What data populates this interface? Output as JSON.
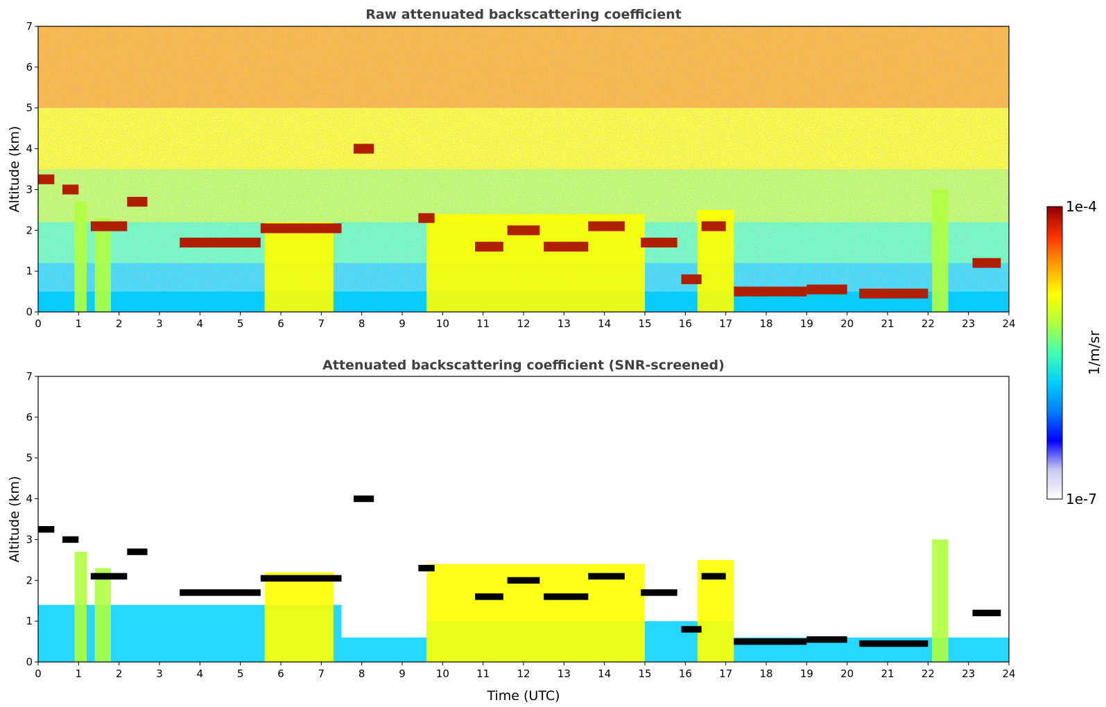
{
  "chart_data": [
    {
      "type": "heatmap",
      "title": "Raw attenuated backscattering coefficient",
      "xlabel": "",
      "ylabel": "Altitude (km)",
      "xlim": [
        0,
        24
      ],
      "ylim": [
        0,
        7
      ],
      "xticks": [
        "0",
        "1",
        "2",
        "3",
        "4",
        "5",
        "6",
        "7",
        "8",
        "9",
        "10",
        "11",
        "12",
        "13",
        "14",
        "15",
        "16",
        "17",
        "18",
        "19",
        "20",
        "21",
        "22",
        "23",
        "24"
      ],
      "yticks": [
        "0",
        "1",
        "2",
        "3",
        "4",
        "5",
        "6",
        "7"
      ],
      "screened": false,
      "layers": [
        {
          "name": "boundary layer",
          "x_start": 0,
          "x_end": 24,
          "top_km": 0.5,
          "level": 0.3
        },
        {
          "name": "aerosol column 1",
          "x_start": 0.9,
          "x_end": 1.2,
          "top_km": 2.7,
          "level": 0.55
        },
        {
          "name": "aerosol column 2",
          "x_start": 1.4,
          "x_end": 1.8,
          "top_km": 2.3,
          "level": 0.55
        },
        {
          "name": "aerosol column 3",
          "x_start": 5.6,
          "x_end": 7.3,
          "top_km": 2.2,
          "level": 0.6
        },
        {
          "name": "aerosol column 4",
          "x_start": 9.6,
          "x_end": 15.0,
          "top_km": 2.4,
          "level": 0.65
        },
        {
          "name": "aerosol column 5",
          "x_start": 16.3,
          "x_end": 17.2,
          "top_km": 2.5,
          "level": 0.6
        },
        {
          "name": "aerosol column 6",
          "x_start": 22.1,
          "x_end": 22.5,
          "top_km": 3.0,
          "level": 0.5
        }
      ],
      "cloud_tops": [
        {
          "x_start": 0.0,
          "x_end": 0.4,
          "alt_km": 3.25
        },
        {
          "x_start": 0.6,
          "x_end": 1.0,
          "alt_km": 3.0
        },
        {
          "x_start": 1.3,
          "x_end": 2.2,
          "alt_km": 2.1
        },
        {
          "x_start": 2.2,
          "x_end": 2.7,
          "alt_km": 2.7
        },
        {
          "x_start": 3.5,
          "x_end": 5.5,
          "alt_km": 1.7
        },
        {
          "x_start": 5.5,
          "x_end": 7.5,
          "alt_km": 2.05
        },
        {
          "x_start": 7.8,
          "x_end": 8.3,
          "alt_km": 4.0
        },
        {
          "x_start": 9.4,
          "x_end": 9.8,
          "alt_km": 2.3
        },
        {
          "x_start": 10.8,
          "x_end": 11.5,
          "alt_km": 1.6
        },
        {
          "x_start": 11.6,
          "x_end": 12.4,
          "alt_km": 2.0
        },
        {
          "x_start": 12.5,
          "x_end": 13.6,
          "alt_km": 1.6
        },
        {
          "x_start": 13.6,
          "x_end": 14.5,
          "alt_km": 2.1
        },
        {
          "x_start": 14.9,
          "x_end": 15.8,
          "alt_km": 1.7
        },
        {
          "x_start": 15.9,
          "x_end": 16.4,
          "alt_km": 0.8
        },
        {
          "x_start": 16.4,
          "x_end": 17.0,
          "alt_km": 2.1
        },
        {
          "x_start": 17.2,
          "x_end": 19.0,
          "alt_km": 0.5
        },
        {
          "x_start": 19.0,
          "x_end": 20.0,
          "alt_km": 0.55
        },
        {
          "x_start": 20.3,
          "x_end": 22.0,
          "alt_km": 0.45
        },
        {
          "x_start": 23.1,
          "x_end": 23.8,
          "alt_km": 1.2
        }
      ]
    },
    {
      "type": "heatmap",
      "title": "Attenuated backscattering coefficient (SNR-screened)",
      "xlabel": "Time (UTC)",
      "ylabel": "Altitude (km)",
      "xlim": [
        0,
        24
      ],
      "ylim": [
        0,
        7
      ],
      "xticks": [
        "0",
        "1",
        "2",
        "3",
        "4",
        "5",
        "6",
        "7",
        "8",
        "9",
        "10",
        "11",
        "12",
        "13",
        "14",
        "15",
        "16",
        "17",
        "18",
        "19",
        "20",
        "21",
        "22",
        "23",
        "24"
      ],
      "yticks": [
        "0",
        "1",
        "2",
        "3",
        "4",
        "5",
        "6",
        "7"
      ],
      "screened": true,
      "screen_top_km": [
        {
          "x_start": 0,
          "x_end": 7.5,
          "top_km": 1.4
        },
        {
          "x_start": 7.5,
          "x_end": 9.6,
          "top_km": 0.6
        },
        {
          "x_start": 9.6,
          "x_end": 17.2,
          "top_km": 1.0
        },
        {
          "x_start": 17.2,
          "x_end": 24,
          "top_km": 0.6
        }
      ]
    }
  ],
  "colorbar": {
    "label": "1/m/sr",
    "max_label": "1e-4",
    "min_label": "1e-7",
    "colormap": [
      "#ffffff",
      "#c8c8f0",
      "#0000ff",
      "#0080ff",
      "#00d0ff",
      "#40ffb0",
      "#b0ff40",
      "#ffff00",
      "#ffa000",
      "#ff3000",
      "#8b0000"
    ]
  },
  "colors": {
    "cloud_outline_screened": "#000000",
    "background": "#ffffff"
  }
}
